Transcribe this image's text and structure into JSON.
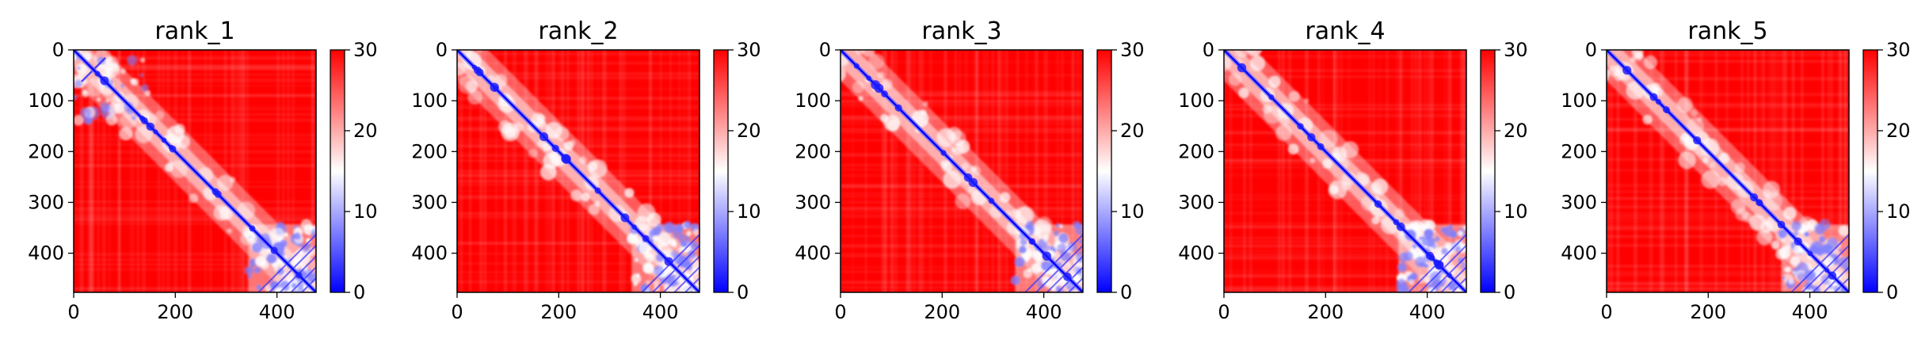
{
  "chart_data": [
    {
      "type": "heatmap",
      "title": "rank_1",
      "xlim": [
        0,
        477
      ],
      "ylim": [
        477,
        0
      ],
      "xticks": [
        "0",
        "200",
        "400"
      ],
      "yticks": [
        "0",
        "100",
        "200",
        "300",
        "400"
      ],
      "colorbar": {
        "range": [
          0,
          30
        ],
        "ticks": [
          "0",
          "10",
          "20",
          "30"
        ],
        "colormap": "bwr"
      }
    },
    {
      "type": "heatmap",
      "title": "rank_2",
      "xlim": [
        0,
        477
      ],
      "ylim": [
        477,
        0
      ],
      "xticks": [
        "0",
        "200",
        "400"
      ],
      "yticks": [
        "0",
        "100",
        "200",
        "300",
        "400"
      ],
      "colorbar": {
        "range": [
          0,
          30
        ],
        "ticks": [
          "0",
          "10",
          "20",
          "30"
        ],
        "colormap": "bwr"
      }
    },
    {
      "type": "heatmap",
      "title": "rank_3",
      "xlim": [
        0,
        477
      ],
      "ylim": [
        477,
        0
      ],
      "xticks": [
        "0",
        "200",
        "400"
      ],
      "yticks": [
        "0",
        "100",
        "200",
        "300",
        "400"
      ],
      "colorbar": {
        "range": [
          0,
          30
        ],
        "ticks": [
          "0",
          "10",
          "20",
          "30"
        ],
        "colormap": "bwr"
      }
    },
    {
      "type": "heatmap",
      "title": "rank_4",
      "xlim": [
        0,
        477
      ],
      "ylim": [
        477,
        0
      ],
      "xticks": [
        "0",
        "200",
        "400"
      ],
      "yticks": [
        "0",
        "100",
        "200",
        "300",
        "400"
      ],
      "colorbar": {
        "range": [
          0,
          30
        ],
        "ticks": [
          "0",
          "10",
          "20",
          "30"
        ],
        "colormap": "bwr"
      }
    },
    {
      "type": "heatmap",
      "title": "rank_5",
      "xlim": [
        0,
        477
      ],
      "ylim": [
        477,
        0
      ],
      "xticks": [
        "0",
        "200",
        "400"
      ],
      "yticks": [
        "0",
        "100",
        "200",
        "300",
        "400"
      ],
      "colorbar": {
        "range": [
          0,
          30
        ],
        "ticks": [
          "0",
          "10",
          "20",
          "30"
        ],
        "colormap": "bwr"
      }
    }
  ],
  "colors": {
    "low": "#0000ff",
    "mid": "#ffffff",
    "high": "#ff0000"
  }
}
